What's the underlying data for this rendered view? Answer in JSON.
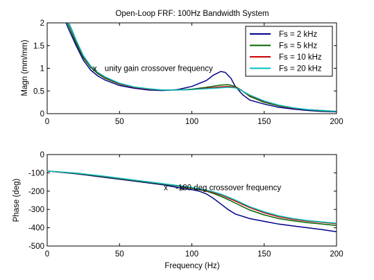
{
  "chart_data": [
    {
      "type": "line",
      "title": "Open-Loop FRF: 100Hz Bandwidth System",
      "xlabel": "",
      "ylabel": "Magn (mm/mm)",
      "xlim": [
        0,
        200
      ],
      "ylim": [
        0,
        2
      ],
      "xticks": [
        0,
        50,
        100,
        150,
        200
      ],
      "yticks": [
        0,
        0.5,
        1,
        1.5,
        2
      ],
      "grid": false,
      "legend_position": "top-right",
      "legend": [
        "Fs = 2 kHz",
        "Fs = 5 kHz",
        "Fs = 10 kHz",
        "Fs = 20 kHz"
      ],
      "annotations": [
        {
          "text": "unity gain crossover frequency",
          "marker": "x",
          "x": 33,
          "y": 1.0
        }
      ],
      "series": [
        {
          "name": "Fs = 2 kHz",
          "color": "#00008b",
          "points": [
            [
              13,
              2
            ],
            [
              15,
              1.85
            ],
            [
              20,
              1.5
            ],
            [
              25,
              1.18
            ],
            [
              30,
              0.96
            ],
            [
              35,
              0.83
            ],
            [
              40,
              0.74
            ],
            [
              50,
              0.62
            ],
            [
              60,
              0.56
            ],
            [
              70,
              0.52
            ],
            [
              80,
              0.51
            ],
            [
              90,
              0.53
            ],
            [
              100,
              0.6
            ],
            [
              110,
              0.73
            ],
            [
              115,
              0.85
            ],
            [
              120,
              0.93
            ],
            [
              123,
              0.91
            ],
            [
              127,
              0.78
            ],
            [
              130,
              0.6
            ],
            [
              135,
              0.42
            ],
            [
              140,
              0.3
            ],
            [
              150,
              0.21
            ],
            [
              160,
              0.14
            ],
            [
              170,
              0.1
            ],
            [
              180,
              0.07
            ],
            [
              190,
              0.05
            ],
            [
              200,
              0.04
            ]
          ]
        },
        {
          "name": "Fs = 5 kHz",
          "color": "#006400",
          "points": [
            [
              14,
              2
            ],
            [
              16,
              1.85
            ],
            [
              20,
              1.55
            ],
            [
              25,
              1.23
            ],
            [
              30,
              1.02
            ],
            [
              35,
              0.88
            ],
            [
              40,
              0.78
            ],
            [
              50,
              0.65
            ],
            [
              60,
              0.58
            ],
            [
              70,
              0.54
            ],
            [
              80,
              0.52
            ],
            [
              90,
              0.52
            ],
            [
              100,
              0.54
            ],
            [
              110,
              0.58
            ],
            [
              120,
              0.63
            ],
            [
              125,
              0.64
            ],
            [
              130,
              0.6
            ],
            [
              135,
              0.5
            ],
            [
              140,
              0.38
            ],
            [
              150,
              0.25
            ],
            [
              160,
              0.17
            ],
            [
              170,
              0.12
            ],
            [
              180,
              0.09
            ],
            [
              190,
              0.06
            ],
            [
              200,
              0.05
            ]
          ]
        },
        {
          "name": "Fs = 10 kHz",
          "color": "#cc0000",
          "points": [
            [
              15,
              2
            ],
            [
              17,
              1.85
            ],
            [
              20,
              1.6
            ],
            [
              25,
              1.26
            ],
            [
              30,
              1.04
            ],
            [
              35,
              0.9
            ],
            [
              40,
              0.8
            ],
            [
              50,
              0.66
            ],
            [
              60,
              0.58
            ],
            [
              70,
              0.54
            ],
            [
              80,
              0.52
            ],
            [
              90,
              0.52
            ],
            [
              100,
              0.53
            ],
            [
              110,
              0.56
            ],
            [
              120,
              0.59
            ],
            [
              125,
              0.6
            ],
            [
              130,
              0.58
            ],
            [
              135,
              0.5
            ],
            [
              140,
              0.4
            ],
            [
              150,
              0.27
            ],
            [
              160,
              0.18
            ],
            [
              170,
              0.12
            ],
            [
              180,
              0.09
            ],
            [
              190,
              0.07
            ],
            [
              200,
              0.05
            ]
          ]
        },
        {
          "name": "Fs = 20 kHz",
          "color": "#00bfbf",
          "points": [
            [
              15,
              2
            ],
            [
              17,
              1.86
            ],
            [
              20,
              1.62
            ],
            [
              25,
              1.28
            ],
            [
              30,
              1.05
            ],
            [
              35,
              0.91
            ],
            [
              40,
              0.81
            ],
            [
              50,
              0.67
            ],
            [
              60,
              0.59
            ],
            [
              70,
              0.55
            ],
            [
              80,
              0.52
            ],
            [
              90,
              0.52
            ],
            [
              100,
              0.53
            ],
            [
              110,
              0.55
            ],
            [
              120,
              0.57
            ],
            [
              125,
              0.58
            ],
            [
              130,
              0.57
            ],
            [
              135,
              0.5
            ],
            [
              140,
              0.41
            ],
            [
              150,
              0.28
            ],
            [
              160,
              0.19
            ],
            [
              170,
              0.13
            ],
            [
              180,
              0.09
            ],
            [
              190,
              0.07
            ],
            [
              200,
              0.05
            ]
          ]
        }
      ]
    },
    {
      "type": "line",
      "title": "",
      "xlabel": "Frequency (Hz)",
      "ylabel": "Phase (deg)",
      "xlim": [
        0,
        200
      ],
      "ylim": [
        -500,
        0
      ],
      "xticks": [
        0,
        50,
        100,
        150,
        200
      ],
      "yticks": [
        -500,
        -400,
        -300,
        -200,
        -100,
        0
      ],
      "grid": false,
      "annotations": [
        {
          "text": "-180 deg crossover frequency",
          "marker": "x",
          "x": 82,
          "y": -180
        },
        {
          "text": "",
          "marker": "x",
          "x": 93,
          "y": -180
        }
      ],
      "series": [
        {
          "name": "Fs = 2 kHz",
          "color": "#00008b",
          "points": [
            [
              0,
              -90
            ],
            [
              20,
              -105
            ],
            [
              40,
              -125
            ],
            [
              60,
              -145
            ],
            [
              80,
              -165
            ],
            [
              90,
              -180
            ],
            [
              100,
              -192
            ],
            [
              105,
              -200
            ],
            [
              110,
              -215
            ],
            [
              115,
              -240
            ],
            [
              120,
              -270
            ],
            [
              125,
              -300
            ],
            [
              130,
              -325
            ],
            [
              140,
              -350
            ],
            [
              150,
              -365
            ],
            [
              160,
              -380
            ],
            [
              170,
              -390
            ],
            [
              180,
              -400
            ],
            [
              190,
              -410
            ],
            [
              200,
              -422
            ]
          ]
        },
        {
          "name": "Fs = 5 kHz",
          "color": "#006400",
          "points": [
            [
              0,
              -90
            ],
            [
              20,
              -103
            ],
            [
              40,
              -122
            ],
            [
              60,
              -142
            ],
            [
              80,
              -162
            ],
            [
              90,
              -172
            ],
            [
              100,
              -185
            ],
            [
              110,
              -200
            ],
            [
              115,
              -213
            ],
            [
              120,
              -228
            ],
            [
              125,
              -246
            ],
            [
              130,
              -265
            ],
            [
              140,
              -303
            ],
            [
              150,
              -330
            ],
            [
              160,
              -350
            ],
            [
              170,
              -362
            ],
            [
              180,
              -372
            ],
            [
              190,
              -380
            ],
            [
              200,
              -388
            ]
          ]
        },
        {
          "name": "Fs = 10 kHz",
          "color": "#cc0000",
          "points": [
            [
              0,
              -90
            ],
            [
              20,
              -102
            ],
            [
              40,
              -120
            ],
            [
              60,
              -140
            ],
            [
              80,
              -160
            ],
            [
              90,
              -170
            ],
            [
              100,
              -182
            ],
            [
              110,
              -197
            ],
            [
              115,
              -208
            ],
            [
              120,
              -220
            ],
            [
              125,
              -237
            ],
            [
              130,
              -254
            ],
            [
              140,
              -290
            ],
            [
              150,
              -318
            ],
            [
              160,
              -340
            ],
            [
              170,
              -354
            ],
            [
              180,
              -364
            ],
            [
              190,
              -371
            ],
            [
              200,
              -378
            ]
          ]
        },
        {
          "name": "Fs = 20 kHz",
          "color": "#00bfbf",
          "points": [
            [
              0,
              -90
            ],
            [
              20,
              -101
            ],
            [
              40,
              -119
            ],
            [
              60,
              -139
            ],
            [
              80,
              -159
            ],
            [
              90,
              -169
            ],
            [
              100,
              -180
            ],
            [
              110,
              -194
            ],
            [
              115,
              -204
            ],
            [
              120,
              -216
            ],
            [
              125,
              -232
            ],
            [
              130,
              -248
            ],
            [
              140,
              -285
            ],
            [
              150,
              -313
            ],
            [
              160,
              -335
            ],
            [
              170,
              -350
            ],
            [
              180,
              -361
            ],
            [
              190,
              -368
            ],
            [
              200,
              -375
            ]
          ]
        }
      ]
    }
  ]
}
